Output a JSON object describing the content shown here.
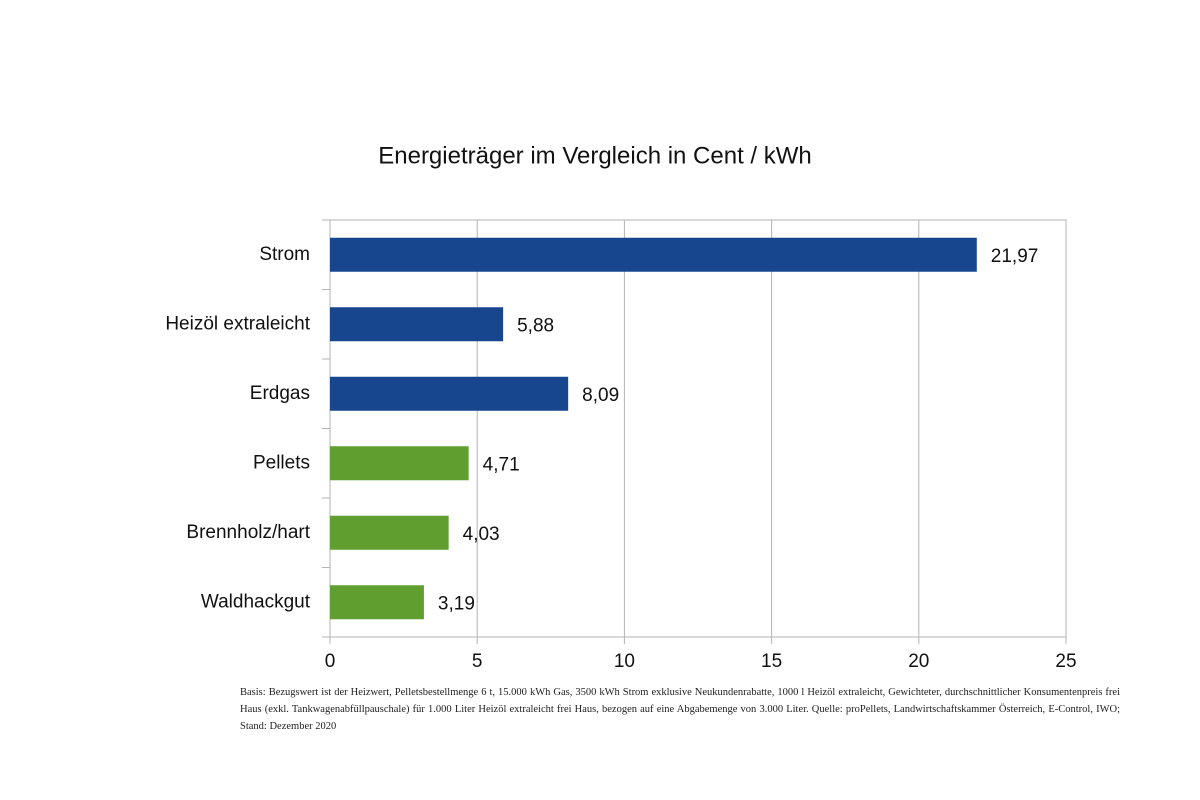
{
  "chart_data": {
    "type": "bar",
    "orientation": "horizontal",
    "title": "Energieträger im Vergleich in Cent / kWh",
    "categories": [
      "Strom",
      "Heizöl extraleicht",
      "Erdgas",
      "Pellets",
      "Brennholz/hart",
      "Waldhackgut"
    ],
    "values": [
      21.97,
      5.88,
      8.09,
      4.71,
      4.03,
      3.19
    ],
    "value_labels": [
      "21,97",
      "5,88",
      "8,09",
      "4,71",
      "4,03",
      "3,19"
    ],
    "colors": [
      "#17468f",
      "#17468f",
      "#17468f",
      "#5f9e2f",
      "#5f9e2f",
      "#5f9e2f"
    ],
    "xlim": [
      0,
      25
    ],
    "xticks": [
      0,
      5,
      10,
      15,
      20,
      25
    ],
    "grid": true,
    "footnote": "Basis: Bezugswert ist der Heizwert, Pelletsbestellmenge 6 t, 15.000 kWh Gas, 3500 kWh Strom exklusive Neukundenrabatte, 1000 l Heizöl extraleicht, Gewichteter, durchschnittlicher Konsumentenpreis frei Haus (exkl. Tankwagenabfüllpauschale) für 1.000 Liter Heizöl extraleicht frei Haus, bezogen auf eine Abgabemenge von 3.000 Liter. Quelle: proPellets, Landwirtschaftskammer Österreich, E-Control, IWO; Stand: Dezember 2020"
  }
}
